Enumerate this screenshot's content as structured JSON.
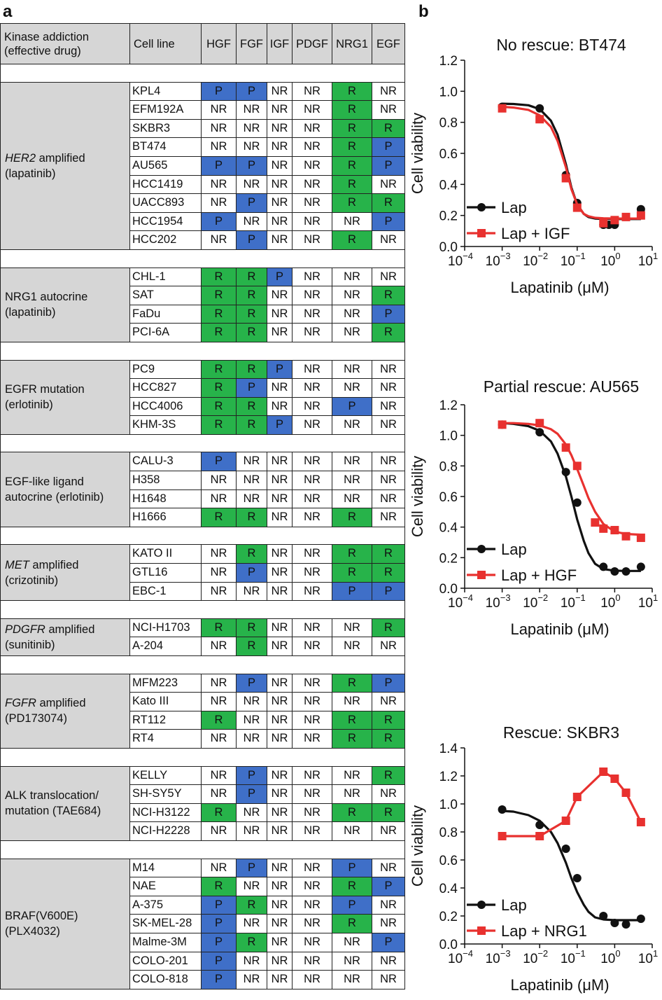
{
  "labels": {
    "a": "a",
    "b": "b"
  },
  "table": {
    "header": {
      "group": [
        "Kinase addiction",
        "(effective drug)"
      ],
      "cell_line": "Cell line",
      "ligands": [
        "HGF",
        "FGF",
        "IGF",
        "PDGF",
        "NRG1",
        "EGF"
      ]
    },
    "colors": {
      "P": "#3f6fc8",
      "R": "#27b34a",
      "NR": "#ffffff",
      "header": "#d6d6d6"
    },
    "groups": [
      {
        "label": [
          {
            "t": "HER2",
            "i": true
          },
          {
            "t": " amplified"
          }
        ],
        "label2": "(lapatinib)",
        "rows": [
          {
            "cell": "KPL4",
            "v": [
              "P",
              "P",
              "NR",
              "NR",
              "R",
              "NR"
            ]
          },
          {
            "cell": "EFM192A",
            "v": [
              "NR",
              "NR",
              "NR",
              "NR",
              "R",
              "NR"
            ]
          },
          {
            "cell": "SKBR3",
            "v": [
              "NR",
              "NR",
              "NR",
              "NR",
              "R",
              "R"
            ]
          },
          {
            "cell": "BT474",
            "v": [
              "NR",
              "NR",
              "NR",
              "NR",
              "R",
              "P"
            ]
          },
          {
            "cell": "AU565",
            "v": [
              "P",
              "P",
              "NR",
              "NR",
              "R",
              "P"
            ]
          },
          {
            "cell": "HCC1419",
            "v": [
              "NR",
              "NR",
              "NR",
              "NR",
              "R",
              "NR"
            ]
          },
          {
            "cell": "UACC893",
            "v": [
              "NR",
              "P",
              "NR",
              "NR",
              "R",
              "R"
            ]
          },
          {
            "cell": "HCC1954",
            "v": [
              "P",
              "NR",
              "NR",
              "NR",
              "NR",
              "P"
            ]
          },
          {
            "cell": "HCC202",
            "v": [
              "NR",
              "P",
              "NR",
              "NR",
              "R",
              "NR"
            ]
          }
        ]
      },
      {
        "label": [
          {
            "t": "NRG1 autocrine"
          }
        ],
        "label2": "(lapatinib)",
        "rows": [
          {
            "cell": "CHL-1",
            "v": [
              "R",
              "R",
              "P",
              "NR",
              "NR",
              "NR"
            ]
          },
          {
            "cell": "SAT",
            "v": [
              "R",
              "R",
              "NR",
              "NR",
              "NR",
              "R"
            ]
          },
          {
            "cell": "FaDu",
            "v": [
              "R",
              "R",
              "NR",
              "NR",
              "NR",
              "P"
            ]
          },
          {
            "cell": "PCI-6A",
            "v": [
              "R",
              "R",
              "NR",
              "NR",
              "NR",
              "R"
            ]
          }
        ]
      },
      {
        "label": [
          {
            "t": "EGFR mutation"
          }
        ],
        "label2": "(erlotinib)",
        "rows": [
          {
            "cell": "PC9",
            "v": [
              "R",
              "R",
              "P",
              "NR",
              "NR",
              "NR"
            ]
          },
          {
            "cell": "HCC827",
            "v": [
              "R",
              "P",
              "NR",
              "NR",
              "NR",
              "NR"
            ]
          },
          {
            "cell": "HCC4006",
            "v": [
              "R",
              "R",
              "NR",
              "NR",
              "P",
              "NR"
            ]
          },
          {
            "cell": "KHM-3S",
            "v": [
              "R",
              "R",
              "P",
              "NR",
              "NR",
              "NR"
            ]
          }
        ]
      },
      {
        "label": [
          {
            "t": "EGF-like ligand"
          }
        ],
        "label2": "autocrine (erlotinib)",
        "rows": [
          {
            "cell": "CALU-3",
            "v": [
              "P",
              "NR",
              "NR",
              "NR",
              "NR",
              "NR"
            ]
          },
          {
            "cell": "H358",
            "v": [
              "NR",
              "NR",
              "NR",
              "NR",
              "NR",
              "NR"
            ]
          },
          {
            "cell": "H1648",
            "v": [
              "NR",
              "NR",
              "NR",
              "NR",
              "NR",
              "NR"
            ]
          },
          {
            "cell": "H1666",
            "v": [
              "R",
              "R",
              "NR",
              "NR",
              "R",
              "NR"
            ]
          }
        ]
      },
      {
        "label": [
          {
            "t": "MET",
            "i": true
          },
          {
            "t": " amplified"
          }
        ],
        "label2": "(crizotinib)",
        "rows": [
          {
            "cell": "KATO II",
            "v": [
              "NR",
              "R",
              "NR",
              "NR",
              "R",
              "R"
            ]
          },
          {
            "cell": "GTL16",
            "v": [
              "NR",
              "P",
              "NR",
              "NR",
              "R",
              "R"
            ]
          },
          {
            "cell": "EBC-1",
            "v": [
              "NR",
              "NR",
              "NR",
              "NR",
              "P",
              "P"
            ]
          }
        ]
      },
      {
        "label": [
          {
            "t": "PDGFR",
            "i": true
          },
          {
            "t": " amplified"
          }
        ],
        "label2": "(sunitinib)",
        "rows": [
          {
            "cell": "NCI-H1703",
            "v": [
              "R",
              "R",
              "NR",
              "NR",
              "NR",
              "R"
            ]
          },
          {
            "cell": "A-204",
            "v": [
              "NR",
              "R",
              "NR",
              "NR",
              "NR",
              "NR"
            ]
          }
        ]
      },
      {
        "label": [
          {
            "t": "FGFR",
            "i": true
          },
          {
            "t": " amplified"
          }
        ],
        "label2": "(PD173074)",
        "rows": [
          {
            "cell": "MFM223",
            "v": [
              "NR",
              "P",
              "NR",
              "NR",
              "R",
              "P"
            ]
          },
          {
            "cell": "Kato III",
            "v": [
              "NR",
              "NR",
              "NR",
              "NR",
              "NR",
              "NR"
            ]
          },
          {
            "cell": "RT112",
            "v": [
              "R",
              "NR",
              "NR",
              "NR",
              "R",
              "R"
            ]
          },
          {
            "cell": "RT4",
            "v": [
              "NR",
              "NR",
              "NR",
              "NR",
              "R",
              "R"
            ]
          }
        ]
      },
      {
        "label": [
          {
            "t": "ALK translocation/"
          }
        ],
        "label2": "mutation (TAE684)",
        "rows": [
          {
            "cell": "KELLY",
            "v": [
              "NR",
              "P",
              "NR",
              "NR",
              "NR",
              "R"
            ]
          },
          {
            "cell": "SH-SY5Y",
            "v": [
              "NR",
              "P",
              "NR",
              "NR",
              "NR",
              "NR"
            ]
          },
          {
            "cell": "NCI-H3122",
            "v": [
              "R",
              "NR",
              "NR",
              "NR",
              "R",
              "R"
            ]
          },
          {
            "cell": "NCI-H2228",
            "v": [
              "NR",
              "NR",
              "NR",
              "NR",
              "NR",
              "NR"
            ]
          }
        ]
      },
      {
        "label": [
          {
            "t": "BRAF(V600E)"
          }
        ],
        "label2": "(PLX4032)",
        "rows": [
          {
            "cell": "M14",
            "v": [
              "NR",
              "P",
              "NR",
              "NR",
              "P",
              "NR"
            ]
          },
          {
            "cell": "NAE",
            "v": [
              "R",
              "NR",
              "NR",
              "NR",
              "R",
              "P"
            ]
          },
          {
            "cell": "A-375",
            "v": [
              "P",
              "R",
              "NR",
              "NR",
              "P",
              "NR"
            ]
          },
          {
            "cell": "SK-MEL-28",
            "v": [
              "P",
              "NR",
              "NR",
              "NR",
              "R",
              "NR"
            ]
          },
          {
            "cell": "Malme-3M",
            "v": [
              "P",
              "R",
              "NR",
              "NR",
              "NR",
              "P"
            ]
          },
          {
            "cell": "COLO-201",
            "v": [
              "P",
              "NR",
              "NR",
              "NR",
              "NR",
              "NR"
            ]
          },
          {
            "cell": "COLO-818",
            "v": [
              "P",
              "NR",
              "NR",
              "NR",
              "NR",
              "NR"
            ]
          }
        ]
      }
    ]
  },
  "chart_data": [
    {
      "type": "line",
      "title": "No rescue: BT474",
      "xlabel": "Lapatinib (μM)",
      "ylabel": "Cell viability",
      "xscale": "log",
      "xlim": [
        0.0001,
        10
      ],
      "ylim": [
        0,
        1.2
      ],
      "yticks": [
        "0.0",
        "0.2",
        "0.4",
        "0.6",
        "0.8",
        "1.0",
        "1.2"
      ],
      "xticks": [
        {
          "b": "10",
          "e": "−4"
        },
        {
          "b": "10",
          "e": "−3"
        },
        {
          "b": "10",
          "e": "−2"
        },
        {
          "b": "10",
          "e": "−1"
        },
        {
          "b": "10",
          "e": "0"
        },
        {
          "b": "10",
          "e": "1"
        }
      ],
      "legend_position": "bottom-left",
      "series": [
        {
          "name": "Lap",
          "color": "#111111",
          "marker": "circle",
          "x": [
            0.001,
            0.01,
            0.05,
            0.1,
            0.5,
            0.7,
            1,
            5
          ],
          "y": [
            0.9,
            0.89,
            0.46,
            0.28,
            0.14,
            0.14,
            0.14,
            0.24
          ],
          "curve_x": [
            0.001,
            0.002,
            0.005,
            0.01,
            0.02,
            0.03,
            0.05,
            0.07,
            0.1,
            0.15,
            0.2,
            0.3,
            0.5,
            1,
            2,
            5
          ],
          "curve_y": [
            0.92,
            0.918,
            0.91,
            0.885,
            0.81,
            0.72,
            0.53,
            0.38,
            0.27,
            0.21,
            0.19,
            0.18,
            0.178,
            0.177,
            0.177,
            0.177
          ]
        },
        {
          "name": "Lap + IGF",
          "color": "#e8312f",
          "marker": "square",
          "x": [
            0.001,
            0.01,
            0.05,
            0.1,
            0.5,
            1,
            2,
            5
          ],
          "y": [
            0.89,
            0.82,
            0.44,
            0.25,
            0.15,
            0.17,
            0.19,
            0.2
          ],
          "curve_x": [
            0.001,
            0.002,
            0.005,
            0.01,
            0.02,
            0.03,
            0.05,
            0.07,
            0.1,
            0.15,
            0.2,
            0.3,
            0.5,
            1,
            2,
            5
          ],
          "curve_y": [
            0.9,
            0.895,
            0.88,
            0.845,
            0.77,
            0.68,
            0.51,
            0.37,
            0.27,
            0.21,
            0.195,
            0.185,
            0.182,
            0.18,
            0.18,
            0.18
          ]
        }
      ]
    },
    {
      "type": "line",
      "title": "Partial rescue: AU565",
      "xlabel": "Lapatinib (μM)",
      "ylabel": "Cell viability",
      "xscale": "log",
      "xlim": [
        0.0001,
        10
      ],
      "ylim": [
        0,
        1.2
      ],
      "yticks": [
        "0.0",
        "0.2",
        "0.4",
        "0.6",
        "0.8",
        "1.0",
        "1.2"
      ],
      "xticks": [
        {
          "b": "10",
          "e": "−4"
        },
        {
          "b": "10",
          "e": "−3"
        },
        {
          "b": "10",
          "e": "−2"
        },
        {
          "b": "10",
          "e": "−1"
        },
        {
          "b": "10",
          "e": "0"
        },
        {
          "b": "10",
          "e": "1"
        }
      ],
      "legend_position": "bottom-left",
      "series": [
        {
          "name": "Lap",
          "color": "#111111",
          "marker": "circle",
          "x": [
            0.001,
            0.01,
            0.05,
            0.1,
            0.5,
            1,
            2,
            5
          ],
          "y": [
            1.07,
            1.02,
            0.76,
            0.56,
            0.14,
            0.11,
            0.11,
            0.14
          ],
          "curve_x": [
            0.001,
            0.002,
            0.005,
            0.01,
            0.02,
            0.03,
            0.05,
            0.07,
            0.1,
            0.15,
            0.2,
            0.3,
            0.5,
            1,
            2,
            5
          ],
          "curve_y": [
            1.08,
            1.075,
            1.06,
            1.03,
            0.96,
            0.88,
            0.73,
            0.6,
            0.45,
            0.31,
            0.23,
            0.16,
            0.125,
            0.115,
            0.113,
            0.113
          ]
        },
        {
          "name": "Lap + HGF",
          "color": "#e8312f",
          "marker": "square",
          "x": [
            0.001,
            0.01,
            0.05,
            0.1,
            0.3,
            0.5,
            1,
            2,
            5
          ],
          "y": [
            1.07,
            1.08,
            0.92,
            0.8,
            0.43,
            0.39,
            0.38,
            0.34,
            0.33
          ],
          "curve_x": [
            0.001,
            0.002,
            0.005,
            0.01,
            0.02,
            0.03,
            0.05,
            0.07,
            0.1,
            0.15,
            0.2,
            0.3,
            0.5,
            1,
            2,
            5
          ],
          "curve_y": [
            1.08,
            1.08,
            1.075,
            1.065,
            1.04,
            1.01,
            0.94,
            0.87,
            0.78,
            0.67,
            0.59,
            0.5,
            0.42,
            0.37,
            0.355,
            0.35
          ]
        }
      ]
    },
    {
      "type": "line",
      "title": "Rescue: SKBR3",
      "xlabel": "Lapatinib (μM)",
      "ylabel": "Cell viability",
      "xscale": "log",
      "xlim": [
        0.0001,
        10
      ],
      "ylim": [
        0,
        1.4
      ],
      "yticks": [
        "0.0",
        "0.2",
        "0.4",
        "0.6",
        "0.8",
        "1.0",
        "1.2",
        "1.4"
      ],
      "xticks": [
        {
          "b": "10",
          "e": "−4"
        },
        {
          "b": "10",
          "e": "−3"
        },
        {
          "b": "10",
          "e": "−2"
        },
        {
          "b": "10",
          "e": "−1"
        },
        {
          "b": "10",
          "e": "0"
        },
        {
          "b": "10",
          "e": "1"
        }
      ],
      "legend_position": "bottom-left",
      "series": [
        {
          "name": "Lap",
          "color": "#111111",
          "marker": "circle",
          "x": [
            0.001,
            0.01,
            0.05,
            0.1,
            0.5,
            1,
            2,
            5
          ],
          "y": [
            0.96,
            0.85,
            0.68,
            0.47,
            0.2,
            0.15,
            0.14,
            0.18
          ],
          "curve_x": [
            0.001,
            0.002,
            0.005,
            0.01,
            0.02,
            0.03,
            0.05,
            0.07,
            0.1,
            0.15,
            0.2,
            0.3,
            0.5,
            1,
            2,
            5
          ],
          "curve_y": [
            0.95,
            0.945,
            0.92,
            0.88,
            0.8,
            0.72,
            0.58,
            0.47,
            0.37,
            0.28,
            0.23,
            0.19,
            0.175,
            0.17,
            0.17,
            0.17
          ]
        },
        {
          "name": "Lap + NRG1",
          "color": "#e8312f",
          "marker": "square",
          "x": [
            0.001,
            0.01,
            0.05,
            0.1,
            0.5,
            1,
            2,
            5
          ],
          "y": [
            0.77,
            0.77,
            0.88,
            1.05,
            1.23,
            1.18,
            1.08,
            0.87
          ],
          "connect": true
        }
      ]
    }
  ]
}
